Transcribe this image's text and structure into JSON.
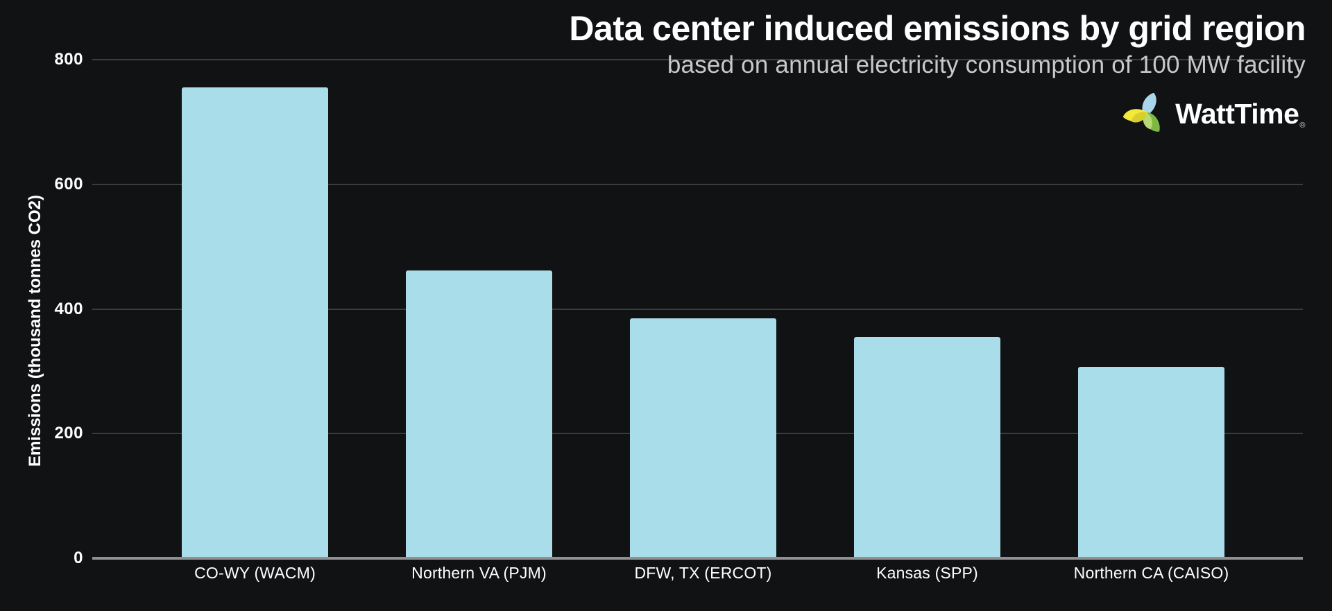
{
  "header": {
    "title": "Data center induced emissions by grid region",
    "subtitle": "based on annual electricity consumption of 100 MW facility"
  },
  "logo": {
    "text": "WattTime",
    "registered_mark": "®",
    "petal_colors": {
      "blue": "#a9d6ea",
      "green": "#7cb943",
      "green_light": "#b9d975",
      "yellow": "#f6e83b",
      "yellow_dark": "#d6cf2e"
    }
  },
  "chart_data": {
    "type": "bar",
    "title": "Data center induced emissions by grid region",
    "subtitle": "based on annual electricity consumption of 100 MW facility",
    "categories": [
      "CO-WY (WACM)",
      "Northern VA (PJM)",
      "DFW, TX (ERCOT)",
      "Kansas (SPP)",
      "Northern CA (CAISO)"
    ],
    "values": [
      755,
      462,
      385,
      355,
      307
    ],
    "xlabel": "",
    "ylabel": "Emissions (thousand tonnes CO2)",
    "ylim": [
      0,
      800
    ],
    "yticks": [
      0,
      200,
      400,
      600,
      800
    ],
    "grid": true,
    "legend": "none",
    "bar_color": "#a9dde9",
    "background_color": "#111213",
    "gridline_color": "#3c3c3c",
    "axis_line_color": "#909090",
    "text_color": "#ffffff",
    "subtitle_color": "#c9c9c9"
  }
}
